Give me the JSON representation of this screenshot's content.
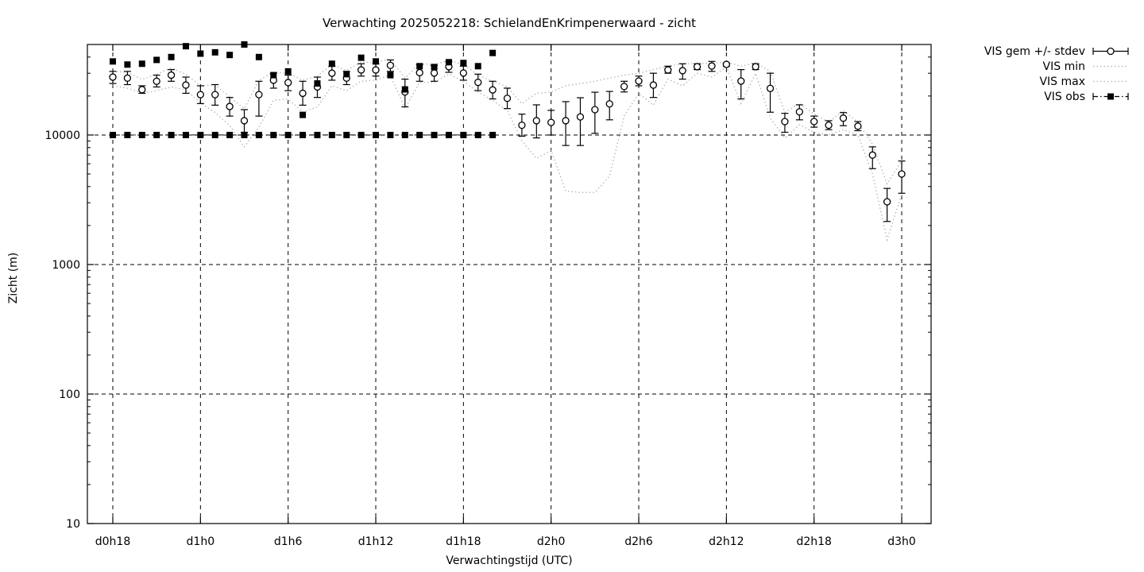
{
  "chart_data": {
    "type": "line",
    "title": "Verwachting 2025052218: SchielandEnKrimpenerwaard - zicht",
    "xlabel": "Verwachtingstijd (UTC)",
    "ylabel": "Zicht (m)",
    "y_scale": "log",
    "ylim": [
      10,
      50000
    ],
    "xlim_hours": [
      16.26,
      74.01
    ],
    "grid": true,
    "legend_position": "outside-top-right",
    "colors": {
      "foreground": "#000000",
      "band_dotted": "#b8b8b8",
      "background": "#ffffff"
    },
    "x_ticks": [
      {
        "hour": 18,
        "label": "d0h18"
      },
      {
        "hour": 24,
        "label": "d1h0"
      },
      {
        "hour": 30,
        "label": "d1h6"
      },
      {
        "hour": 36,
        "label": "d1h12"
      },
      {
        "hour": 42,
        "label": "d1h18"
      },
      {
        "hour": 48,
        "label": "d2h0"
      },
      {
        "hour": 54,
        "label": "d2h6"
      },
      {
        "hour": 60,
        "label": "d2h12"
      },
      {
        "hour": 66,
        "label": "d2h18"
      },
      {
        "hour": 72,
        "label": "d3h0"
      }
    ],
    "y_ticks": [
      {
        "value": 10,
        "label": "10"
      },
      {
        "value": 100,
        "label": "100"
      },
      {
        "value": 1000,
        "label": "1000"
      },
      {
        "value": 10000,
        "label": "10000"
      }
    ],
    "legend": [
      {
        "label": "VIS gem +/- stdev",
        "style": "errorbar-circle"
      },
      {
        "label": "VIS min",
        "style": "dotted"
      },
      {
        "label": "VIS max",
        "style": "dotted"
      },
      {
        "label": "VIS obs",
        "style": "dashdot-square"
      }
    ],
    "series": {
      "vis_gem": {
        "name": "VIS gem +/- stdev",
        "hours": [
          18,
          19,
          20,
          21,
          22,
          23,
          24,
          25,
          26,
          27,
          28,
          29,
          30,
          31,
          32,
          33,
          34,
          35,
          36,
          37,
          38,
          39,
          40,
          41,
          42,
          43,
          44,
          45,
          46,
          47,
          48,
          49,
          50,
          51,
          52,
          53,
          54,
          55,
          56,
          57,
          58,
          59,
          60,
          61,
          62,
          63,
          64,
          65,
          66,
          67,
          68,
          69,
          70,
          71,
          72
        ],
        "mean": [
          28000,
          27500,
          22400,
          26000,
          29000,
          24300,
          20500,
          20500,
          16600,
          12900,
          20500,
          26500,
          25400,
          21000,
          23500,
          30000,
          27500,
          31800,
          31800,
          34500,
          21500,
          30300,
          30100,
          33700,
          30100,
          25500,
          22300,
          19200,
          11900,
          12900,
          12500,
          12900,
          13800,
          15700,
          17400,
          23700,
          26100,
          24300,
          31800,
          31400,
          33700,
          34100,
          35100,
          26100,
          33700,
          22900,
          12700,
          15100,
          12700,
          11900,
          13500,
          11700,
          7000,
          3050,
          5000
        ],
        "stdev_lo": [
          25000,
          24500,
          21000,
          23500,
          26000,
          21000,
          17500,
          17000,
          14000,
          10500,
          14000,
          23000,
          22000,
          17000,
          19500,
          26500,
          24500,
          28500,
          28500,
          31000,
          16500,
          26000,
          26000,
          30500,
          26500,
          22000,
          19000,
          16000,
          9800,
          9500,
          10000,
          8300,
          8300,
          10300,
          13100,
          21500,
          24000,
          19500,
          30000,
          27000,
          32000,
          31000,
          34000,
          19000,
          32000,
          15000,
          10500,
          13100,
          11500,
          11000,
          11800,
          10800,
          5500,
          2150,
          3550
        ],
        "stdev_hi": [
          31000,
          31000,
          24000,
          29000,
          32000,
          28000,
          24000,
          24500,
          19500,
          15700,
          26000,
          30000,
          29000,
          26000,
          28000,
          34000,
          31000,
          35500,
          35500,
          38000,
          27000,
          35000,
          34500,
          37000,
          34000,
          29500,
          26000,
          23000,
          14500,
          17100,
          15500,
          18100,
          19400,
          21400,
          21700,
          26000,
          28500,
          30000,
          34000,
          35500,
          35500,
          37000,
          36000,
          32000,
          35500,
          30000,
          14700,
          17100,
          14000,
          12900,
          14900,
          12700,
          8100,
          3870,
          6300
        ]
      },
      "vis_min": {
        "name": "VIS min",
        "hours": [
          18,
          19,
          20,
          21,
          22,
          23,
          24,
          25,
          26,
          27,
          28,
          29,
          30,
          31,
          32,
          33,
          34,
          35,
          36,
          37,
          38,
          39,
          40,
          41,
          42,
          43,
          44,
          45,
          46,
          47,
          48,
          49,
          50,
          51,
          52,
          53,
          54,
          55,
          56,
          57,
          58,
          59,
          60,
          61,
          62,
          63,
          64,
          65,
          66,
          67,
          68,
          69,
          70,
          71,
          72
        ],
        "values": [
          24000,
          23000,
          21000,
          22000,
          23500,
          22300,
          17700,
          14900,
          11800,
          8100,
          11500,
          18500,
          19000,
          15000,
          16500,
          24000,
          22000,
          26000,
          26500,
          29000,
          16000,
          25500,
          25500,
          29500,
          26000,
          21500,
          18500,
          15500,
          9000,
          6600,
          7600,
          3700,
          3600,
          3600,
          4800,
          14000,
          21000,
          17000,
          27000,
          24000,
          30000,
          28000,
          33500,
          17500,
          30000,
          13500,
          9500,
          12000,
          10500,
          10000,
          11000,
          10000,
          5000,
          1550,
          3500
        ]
      },
      "vis_max": {
        "name": "VIS max",
        "hours": [
          18,
          19,
          20,
          21,
          22,
          23,
          24,
          25,
          26,
          27,
          28,
          29,
          30,
          31,
          32,
          33,
          34,
          35,
          36,
          37,
          38,
          39,
          40,
          41,
          42,
          43,
          44,
          45,
          46,
          47,
          48,
          49,
          50,
          51,
          52,
          53,
          54,
          55,
          56,
          57,
          58,
          59,
          60,
          61,
          62,
          63,
          64,
          65,
          66,
          67,
          68,
          69,
          70,
          71,
          72
        ],
        "values": [
          31000,
          30500,
          26900,
          29500,
          33000,
          29500,
          24000,
          24300,
          19700,
          16000,
          26500,
          30500,
          30000,
          26500,
          28500,
          35000,
          31500,
          36500,
          36500,
          38500,
          27500,
          35500,
          35000,
          37500,
          35000,
          29000,
          26000,
          23500,
          17500,
          21000,
          21500,
          24000,
          25000,
          26000,
          27500,
          29000,
          30000,
          32000,
          34000,
          35500,
          35500,
          36000,
          36500,
          34000,
          36000,
          31000,
          15000,
          17500,
          14500,
          12500,
          15500,
          12500,
          8500,
          4200,
          6300
        ]
      },
      "vis_obs": {
        "name": "VIS obs",
        "hours": [
          18,
          19,
          20,
          21,
          22,
          23,
          24,
          25,
          26,
          27,
          28,
          29,
          30,
          31,
          32,
          33,
          34,
          35,
          36,
          37,
          38,
          39,
          40,
          41,
          42,
          43,
          44
        ],
        "values": [
          37000,
          35000,
          35500,
          38000,
          40000,
          48500,
          42500,
          43500,
          41500,
          50000,
          40000,
          29000,
          31000,
          14300,
          25000,
          35500,
          29500,
          39500,
          37000,
          29000,
          22500,
          34000,
          33500,
          36500,
          36000,
          34000,
          43000
        ]
      },
      "vis_obs_capped": {
        "name": "VIS obs",
        "hours": [
          18,
          19,
          20,
          21,
          22,
          23,
          24,
          25,
          26,
          27,
          28,
          29,
          30,
          31,
          32,
          33,
          34,
          35,
          36,
          37,
          38,
          39,
          40,
          41,
          42,
          43,
          44
        ],
        "values": [
          10000,
          10000,
          10000,
          10000,
          10000,
          10000,
          10000,
          10000,
          10000,
          10000,
          10000,
          10000,
          10000,
          10000,
          10000,
          10000,
          10000,
          10000,
          10000,
          10000,
          10000,
          10000,
          10000,
          10000,
          10000,
          10000,
          10000
        ]
      }
    }
  }
}
